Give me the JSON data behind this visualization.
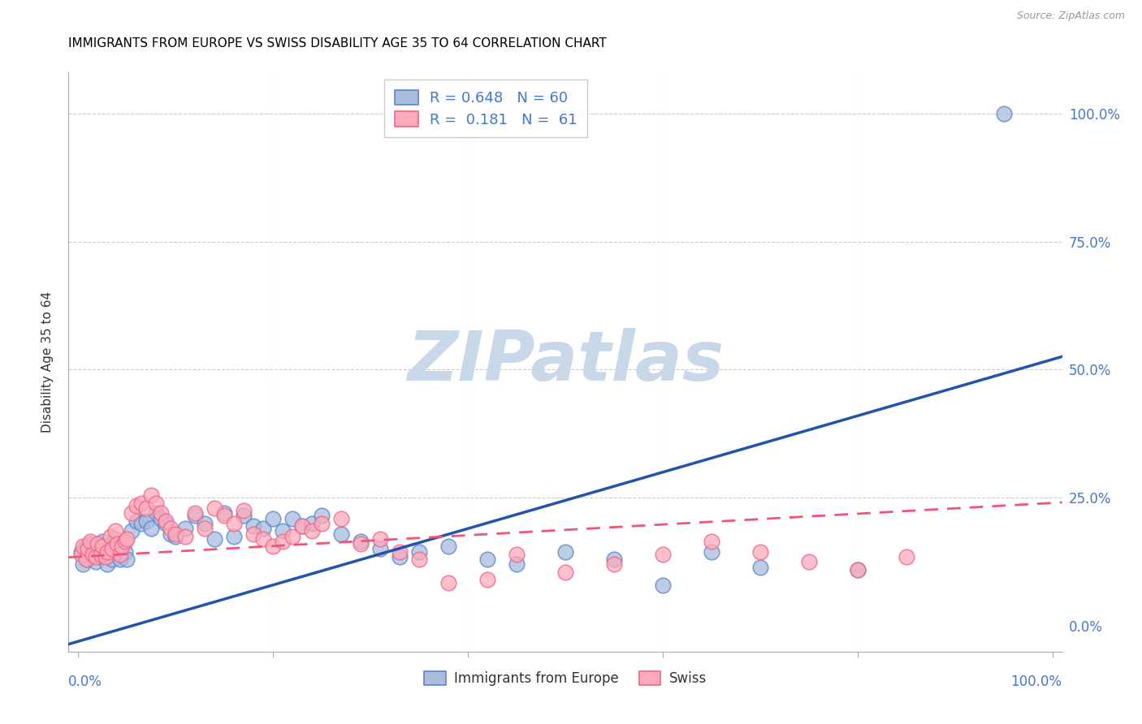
{
  "title": "IMMIGRANTS FROM EUROPE VS SWISS DISABILITY AGE 35 TO 64 CORRELATION CHART",
  "source": "Source: ZipAtlas.com",
  "ylabel": "Disability Age 35 to 64",
  "watermark": "ZIPatlas",
  "watermark_color": "#C8D8E8",
  "blue_color": "#4477BB",
  "blue_fill": "#AABBDD",
  "pink_color": "#EE5577",
  "pink_fill": "#FFAABB",
  "legend_blue_R": "0.648",
  "legend_blue_N": "60",
  "legend_pink_R": "0.181",
  "legend_pink_N": "61",
  "blue_line_slope": 0.55,
  "blue_line_intercept": -3.0,
  "pink_line_slope": 0.105,
  "pink_line_intercept": 13.5,
  "blue_scatter_x": [
    0.3,
    0.5,
    0.8,
    1.0,
    1.2,
    1.5,
    1.8,
    2.0,
    2.3,
    2.5,
    2.8,
    3.0,
    3.3,
    3.5,
    3.8,
    4.0,
    4.3,
    4.5,
    4.8,
    5.0,
    5.5,
    6.0,
    6.5,
    7.0,
    7.5,
    8.0,
    8.5,
    9.0,
    9.5,
    10.0,
    11.0,
    12.0,
    13.0,
    14.0,
    15.0,
    16.0,
    17.0,
    18.0,
    19.0,
    20.0,
    21.0,
    22.0,
    23.0,
    24.0,
    25.0,
    27.0,
    29.0,
    31.0,
    33.0,
    35.0,
    38.0,
    42.0,
    45.0,
    50.0,
    55.0,
    60.0,
    65.0,
    70.0,
    80.0,
    95.0
  ],
  "blue_scatter_y": [
    14.5,
    12.0,
    15.5,
    13.0,
    16.0,
    14.5,
    12.5,
    15.0,
    13.5,
    16.5,
    14.0,
    12.0,
    15.5,
    13.0,
    17.0,
    14.5,
    13.0,
    16.0,
    14.5,
    13.0,
    18.5,
    20.5,
    20.0,
    20.5,
    19.0,
    22.0,
    21.0,
    20.0,
    18.0,
    17.5,
    19.0,
    21.5,
    20.0,
    17.0,
    22.0,
    17.5,
    21.5,
    19.5,
    19.0,
    21.0,
    18.5,
    21.0,
    19.5,
    20.0,
    21.5,
    18.0,
    16.5,
    15.0,
    13.5,
    14.5,
    15.5,
    13.0,
    12.0,
    14.5,
    13.0,
    8.0,
    14.5,
    11.5,
    11.0,
    100.0
  ],
  "pink_scatter_x": [
    0.3,
    0.5,
    0.8,
    1.0,
    1.2,
    1.5,
    1.8,
    2.0,
    2.3,
    2.5,
    2.8,
    3.0,
    3.3,
    3.5,
    3.8,
    4.0,
    4.3,
    4.5,
    4.8,
    5.0,
    5.5,
    6.0,
    6.5,
    7.0,
    7.5,
    8.0,
    8.5,
    9.0,
    9.5,
    10.0,
    11.0,
    12.0,
    13.0,
    14.0,
    15.0,
    16.0,
    17.0,
    18.0,
    19.0,
    20.0,
    21.0,
    22.0,
    23.0,
    24.0,
    25.0,
    27.0,
    29.0,
    31.0,
    33.0,
    35.0,
    38.0,
    42.0,
    45.0,
    50.0,
    55.0,
    60.0,
    65.0,
    70.0,
    75.0,
    80.0,
    85.0
  ],
  "pink_scatter_y": [
    14.0,
    15.5,
    13.0,
    15.0,
    16.5,
    14.0,
    13.5,
    16.0,
    14.0,
    15.5,
    13.5,
    14.5,
    17.5,
    15.0,
    18.5,
    16.0,
    14.0,
    15.5,
    16.5,
    17.0,
    22.0,
    23.5,
    24.0,
    23.0,
    25.5,
    24.0,
    22.0,
    20.5,
    19.0,
    18.0,
    17.5,
    22.0,
    19.0,
    23.0,
    21.5,
    20.0,
    22.5,
    18.0,
    17.0,
    15.5,
    16.5,
    17.5,
    19.5,
    18.5,
    20.0,
    21.0,
    16.0,
    17.0,
    14.5,
    13.0,
    8.5,
    9.0,
    14.0,
    10.5,
    12.0,
    14.0,
    16.5,
    14.5,
    12.5,
    11.0,
    13.5
  ]
}
